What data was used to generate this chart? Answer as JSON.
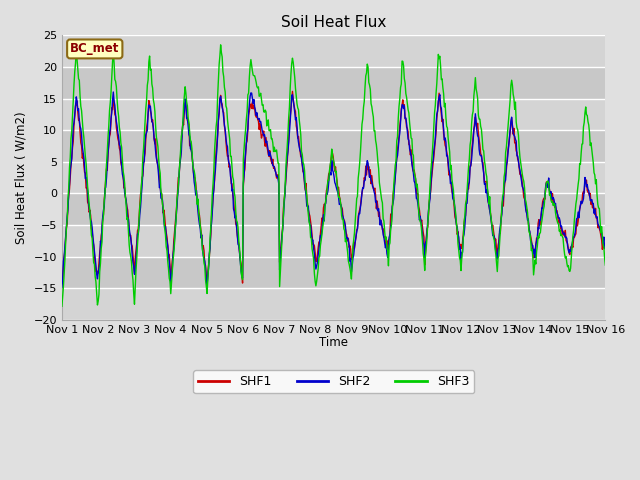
{
  "title": "Soil Heat Flux",
  "ylabel": "Soil Heat Flux ( W/m2)",
  "xlabel": "Time",
  "ylim": [
    -20,
    25
  ],
  "background_color": "#e0e0e0",
  "plot_bg_color": "#e0e0e0",
  "grid_color": "white",
  "colors": {
    "SHF1": "#cc0000",
    "SHF2": "#0000cc",
    "SHF3": "#00cc00"
  },
  "legend_label": "BC_met",
  "x_tick_labels": [
    "Nov 1",
    "Nov 2",
    "Nov 3",
    "Nov 4",
    "Nov 5",
    "Nov 6",
    "Nov 7",
    "Nov 8",
    "Nov 9",
    "Nov 10",
    "Nov 11",
    "Nov 12",
    "Nov 13",
    "Nov 14",
    "Nov 15",
    "Nov 16"
  ],
  "num_days": 15,
  "band_colors": [
    "#d0d0d0",
    "#c0c0c0"
  ],
  "yticks": [
    -20,
    -15,
    -10,
    -5,
    0,
    5,
    10,
    15,
    20,
    25
  ]
}
